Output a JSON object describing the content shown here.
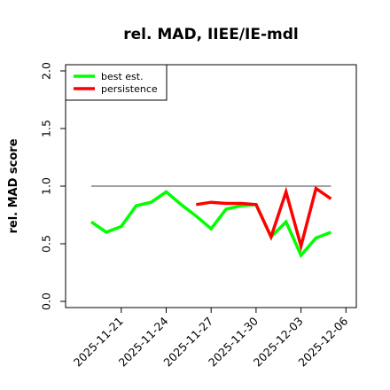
{
  "chart_data": {
    "type": "line",
    "title": "rel. MAD, IIEE/IE-mdl",
    "ylabel": "rel. MAD score",
    "xlabel": "",
    "ylim": [
      0.0,
      2.0
    ],
    "yticks": [
      "0.0",
      "0.5",
      "1.0",
      "1.5",
      "2.0"
    ],
    "x": [
      "2025-11-19",
      "2025-11-20",
      "2025-11-21",
      "2025-11-22",
      "2025-11-23",
      "2025-11-24",
      "2025-11-25",
      "2025-11-26",
      "2025-11-27",
      "2025-11-28",
      "2025-11-29",
      "2025-11-30",
      "2025-12-01",
      "2025-12-02",
      "2025-12-03",
      "2025-12-04",
      "2025-12-05",
      "2025-12-06"
    ],
    "xticks": [
      "2025-11-21",
      "2025-11-24",
      "2025-11-27",
      "2025-11-30",
      "2025-12-03",
      "2025-12-06"
    ],
    "reference_line": 1.0,
    "legend_position": "top-left",
    "grid": false,
    "series": [
      {
        "name": "best est.",
        "color": "#00ff00",
        "values": [
          0.69,
          0.6,
          0.65,
          0.83,
          0.86,
          0.95,
          0.84,
          0.74,
          0.63,
          0.8,
          0.83,
          0.84,
          0.56,
          0.69,
          0.4,
          0.55,
          0.6,
          null
        ]
      },
      {
        "name": "persistence",
        "color": "#ff0000",
        "values": [
          null,
          null,
          null,
          null,
          null,
          null,
          null,
          0.84,
          0.86,
          0.85,
          0.85,
          0.84,
          0.56,
          0.95,
          0.48,
          0.98,
          0.89,
          null
        ]
      }
    ]
  }
}
